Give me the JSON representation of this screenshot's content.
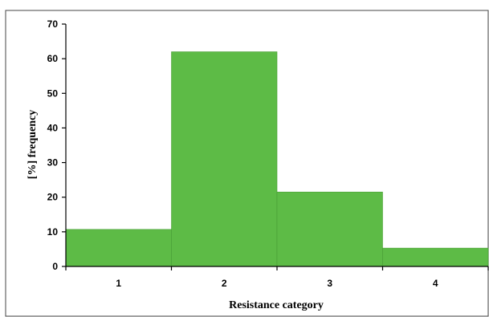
{
  "chart_data": {
    "type": "bar",
    "categories": [
      "1",
      "2",
      "3",
      "4"
    ],
    "values": [
      10.7,
      62,
      21.5,
      5.3
    ],
    "xlabel": "Resistance category",
    "ylabel": "[%] frequency",
    "ylim": [
      0,
      70
    ],
    "yticks": [
      0,
      10,
      20,
      30,
      40,
      50,
      60,
      70
    ],
    "grid": false,
    "bar_color": "#5dbb46",
    "bar_edge_color": "#4a9e36"
  }
}
